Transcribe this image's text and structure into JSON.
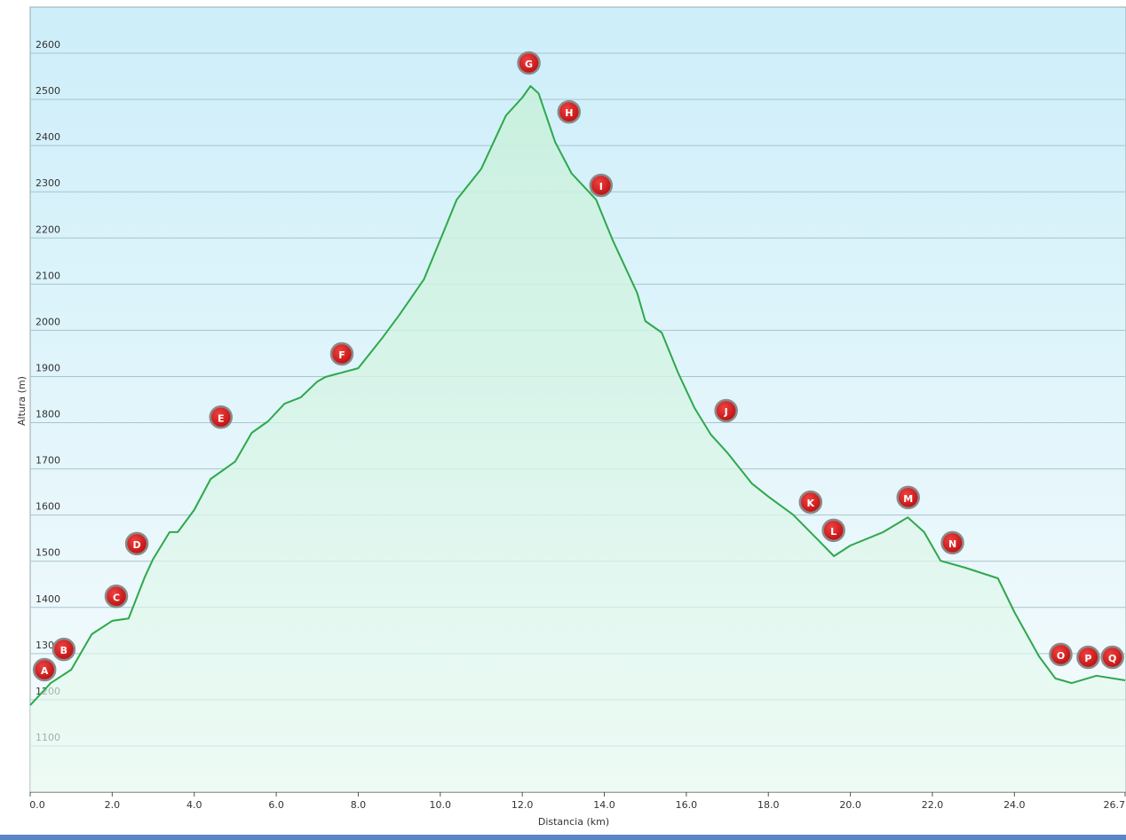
{
  "chart_data": {
    "type": "line",
    "x_label": "Distancia  (km)",
    "y_label": "Altura (m)",
    "x": [
      0,
      0.5,
      1.0,
      1.5,
      2.0,
      2.4,
      2.8,
      3.0,
      3.4,
      3.6,
      4.0,
      4.4,
      5.0,
      5.4,
      5.8,
      6.2,
      6.6,
      7.0,
      7.2,
      8.0,
      8.6,
      9.0,
      9.6,
      10.0,
      10.4,
      11.0,
      11.6,
      12.0,
      12.2,
      12.4,
      12.8,
      13.2,
      13.8,
      14.2,
      14.8,
      15.0,
      15.4,
      15.8,
      16.2,
      16.6,
      17.0,
      17.6,
      18.0,
      18.6,
      19.2,
      19.6,
      20.0,
      20.8,
      21.4,
      21.8,
      22.2,
      22.8,
      23.6,
      24.0,
      24.6,
      25.0,
      25.4,
      26.0,
      26.7
    ],
    "series": [
      {
        "name": "Altura",
        "color": "#2ea84c",
        "values": [
          1188,
          1236,
          1265,
          1342,
          1371,
          1376,
          1467,
          1505,
          1563,
          1563,
          1611,
          1678,
          1716,
          1778,
          1803,
          1841,
          1855,
          1889,
          1899,
          1918,
          1985,
          2033,
          2110,
          2196,
          2283,
          2350,
          2465,
          2504,
          2529,
          2513,
          2408,
          2340,
          2283,
          2196,
          2081,
          2020,
          1995,
          1908,
          1832,
          1774,
          1735,
          1668,
          1640,
          1601,
          1547,
          1511,
          1534,
          1563,
          1595,
          1563,
          1501,
          1486,
          1463,
          1390,
          1294,
          1246,
          1236,
          1252,
          1242
        ]
      }
    ],
    "xlim": [
      0,
      26.7
    ],
    "ylim": [
      1000,
      2700
    ],
    "xticks": [
      {
        "value": 0,
        "label": "0.0"
      },
      {
        "value": 2,
        "label": "2.0"
      },
      {
        "value": 4,
        "label": "4.0"
      },
      {
        "value": 6,
        "label": "6.0"
      },
      {
        "value": 8,
        "label": "8.0"
      },
      {
        "value": 10,
        "label": "10.0"
      },
      {
        "value": 12,
        "label": "12.0"
      },
      {
        "value": 14,
        "label": "14.0"
      },
      {
        "value": 16,
        "label": "16.0"
      },
      {
        "value": 18,
        "label": "18.0"
      },
      {
        "value": 20,
        "label": "20.0"
      },
      {
        "value": 22,
        "label": "22.0"
      },
      {
        "value": 24,
        "label": "24.0"
      },
      {
        "value": 26.7,
        "label": "26.7"
      }
    ],
    "yticks": [
      1100,
      1200,
      1300,
      1400,
      1500,
      1600,
      1700,
      1800,
      1900,
      2000,
      2100,
      2200,
      2300,
      2400,
      2500,
      2600
    ],
    "grid": true,
    "waypoints": [
      {
        "label": "A",
        "x": 0.35,
        "y": 1265
      },
      {
        "label": "B",
        "x": 0.82,
        "y": 1309
      },
      {
        "label": "C",
        "x": 2.1,
        "y": 1424
      },
      {
        "label": "D",
        "x": 2.6,
        "y": 1538
      },
      {
        "label": "E",
        "x": 4.65,
        "y": 1812
      },
      {
        "label": "F",
        "x": 7.6,
        "y": 1949
      },
      {
        "label": "G",
        "x": 12.16,
        "y": 2579
      },
      {
        "label": "H",
        "x": 13.14,
        "y": 2473
      },
      {
        "label": "I",
        "x": 13.92,
        "y": 2314
      },
      {
        "label": "J",
        "x": 16.97,
        "y": 1826
      },
      {
        "label": "K",
        "x": 19.03,
        "y": 1628
      },
      {
        "label": "L",
        "x": 19.59,
        "y": 1567
      },
      {
        "label": "M",
        "x": 21.41,
        "y": 1638
      },
      {
        "label": "N",
        "x": 22.49,
        "y": 1540
      },
      {
        "label": "O",
        "x": 25.13,
        "y": 1298
      },
      {
        "label": "P",
        "x": 25.8,
        "y": 1292
      },
      {
        "label": "Q",
        "x": 26.39,
        "y": 1292
      }
    ]
  }
}
